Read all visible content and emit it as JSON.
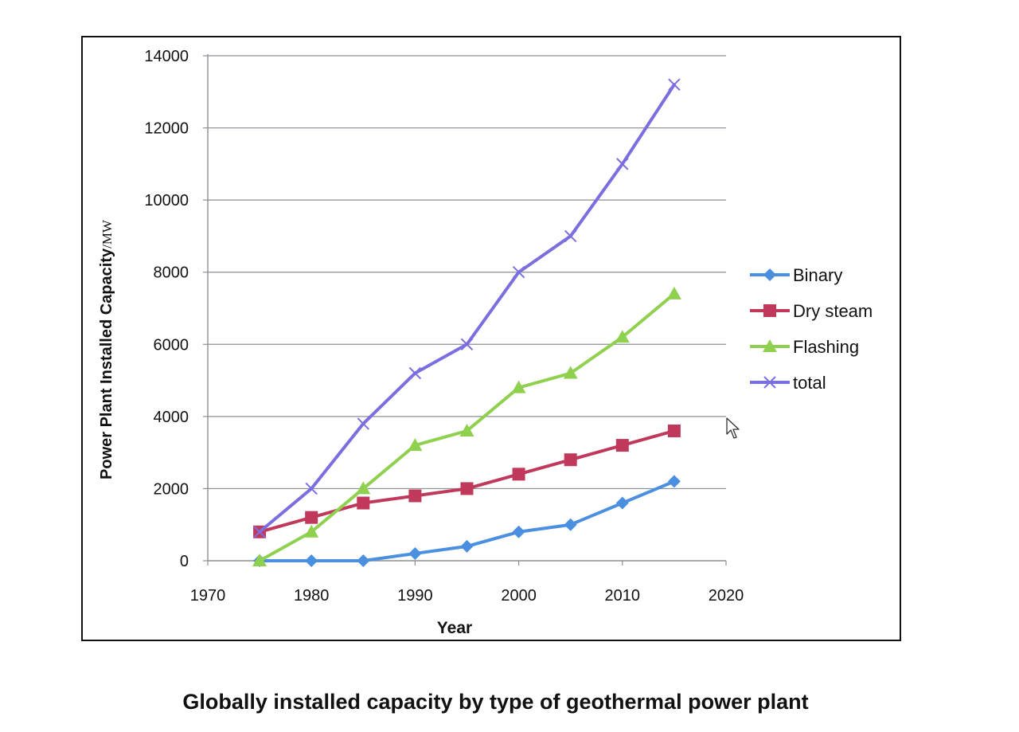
{
  "caption": "Globally installed capacity by type of geothermal power plant",
  "chart_data": {
    "type": "line",
    "title": "",
    "xlabel": "Year",
    "ylabel_main": "Power Plant Installed Capacity",
    "ylabel_unit": "/MW",
    "xlim": [
      1970,
      2020
    ],
    "ylim": [
      0,
      14000
    ],
    "x_ticks": [
      1970,
      1980,
      1990,
      2000,
      2010,
      2020
    ],
    "y_ticks": [
      0,
      2000,
      4000,
      6000,
      8000,
      10000,
      12000,
      14000
    ],
    "grid": "horizontal",
    "legend_position": "right",
    "x": [
      1975,
      1980,
      1985,
      1990,
      1995,
      2000,
      2005,
      2010,
      2015
    ],
    "series": [
      {
        "name": "Binary",
        "color": "#4a8fe0",
        "marker": "diamond",
        "values": [
          0,
          0,
          0,
          200,
          400,
          800,
          1000,
          1600,
          2200
        ]
      },
      {
        "name": "Dry steam",
        "color": "#c0395a",
        "marker": "square",
        "values": [
          800,
          1200,
          1600,
          1800,
          2000,
          2400,
          2800,
          3200,
          3600
        ]
      },
      {
        "name": "Flashing",
        "color": "#8fd14f",
        "marker": "triangle",
        "values": [
          0,
          800,
          2000,
          3200,
          3600,
          4800,
          5200,
          6200,
          7400
        ]
      },
      {
        "name": "total",
        "color": "#7b6fe0",
        "marker": "x",
        "values": [
          800,
          2000,
          3800,
          5200,
          6000,
          8000,
          9000,
          11000,
          13200
        ]
      }
    ]
  }
}
